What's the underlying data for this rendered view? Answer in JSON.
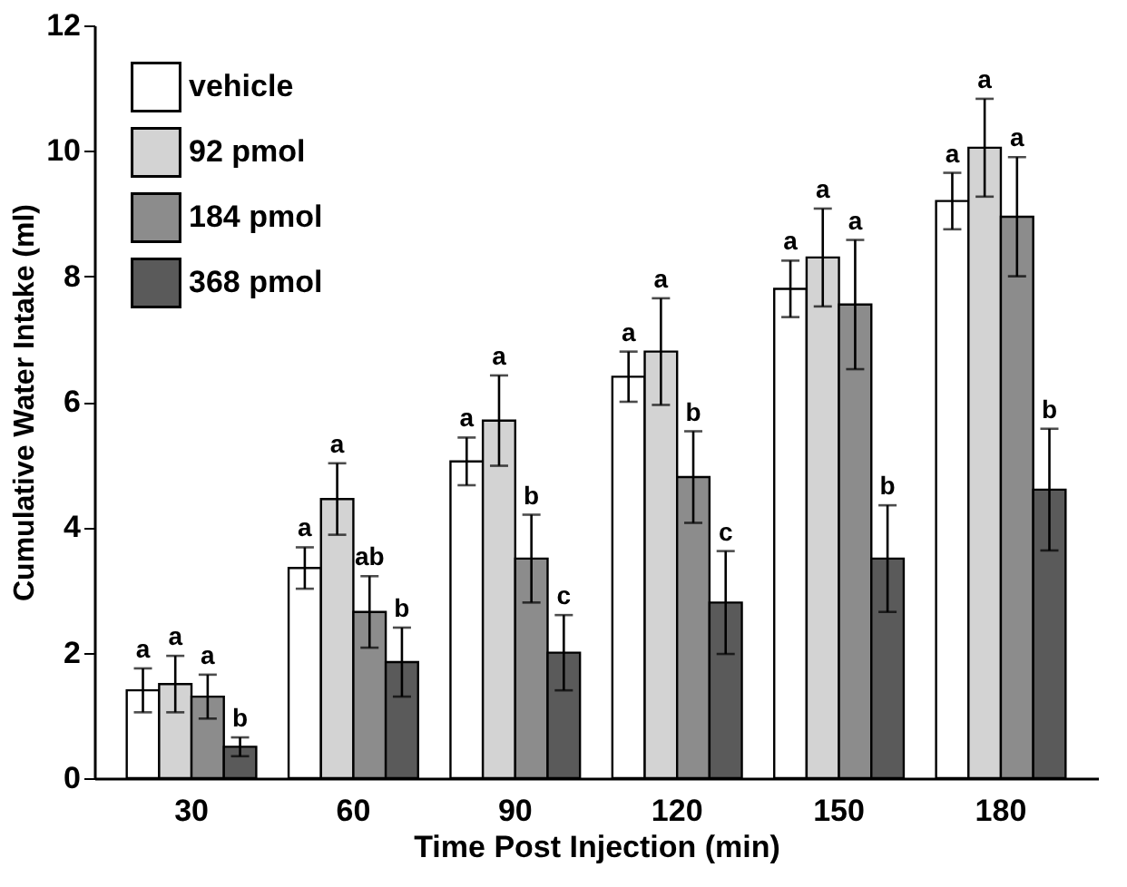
{
  "chart_data": {
    "type": "bar",
    "xlabel": "Time Post Injection (min)",
    "ylabel": "Cumulative Water Intake (ml)",
    "categories": [
      "30",
      "60",
      "90",
      "120",
      "150",
      "180"
    ],
    "series": [
      {
        "name": "vehicle",
        "color": "#ffffff",
        "values": [
          1.4,
          3.35,
          5.05,
          6.4,
          7.8,
          9.2
        ],
        "errors": [
          0.35,
          0.33,
          0.38,
          0.4,
          0.45,
          0.45
        ],
        "value_labels": [
          "a",
          "a",
          "a",
          "a",
          "a",
          "a"
        ]
      },
      {
        "name": "92 pmol",
        "color": "#d3d3d3",
        "values": [
          1.5,
          4.45,
          5.7,
          6.8,
          8.3,
          10.05
        ],
        "errors": [
          0.45,
          0.57,
          0.72,
          0.85,
          0.78,
          0.78
        ],
        "value_labels": [
          "a",
          "a",
          "a",
          "a",
          "a",
          "a"
        ]
      },
      {
        "name": "184 pmol",
        "color": "#8c8c8c",
        "values": [
          1.3,
          2.65,
          3.5,
          4.8,
          7.55,
          8.95
        ],
        "errors": [
          0.35,
          0.57,
          0.7,
          0.73,
          1.03,
          0.95
        ],
        "value_labels": [
          "a",
          "ab",
          "b",
          "b",
          "a",
          "a"
        ]
      },
      {
        "name": "368 pmol",
        "color": "#5a5a5a",
        "values": [
          0.5,
          1.85,
          2.0,
          2.8,
          3.5,
          4.6
        ],
        "errors": [
          0.15,
          0.55,
          0.6,
          0.82,
          0.85,
          0.97
        ],
        "value_labels": [
          "b",
          "b",
          "c",
          "c",
          "b",
          "b"
        ]
      }
    ],
    "ylim": [
      0,
      12
    ],
    "yticks": [
      0,
      2,
      4,
      6,
      8,
      10,
      12
    ],
    "grid": false,
    "legend": "top left"
  }
}
